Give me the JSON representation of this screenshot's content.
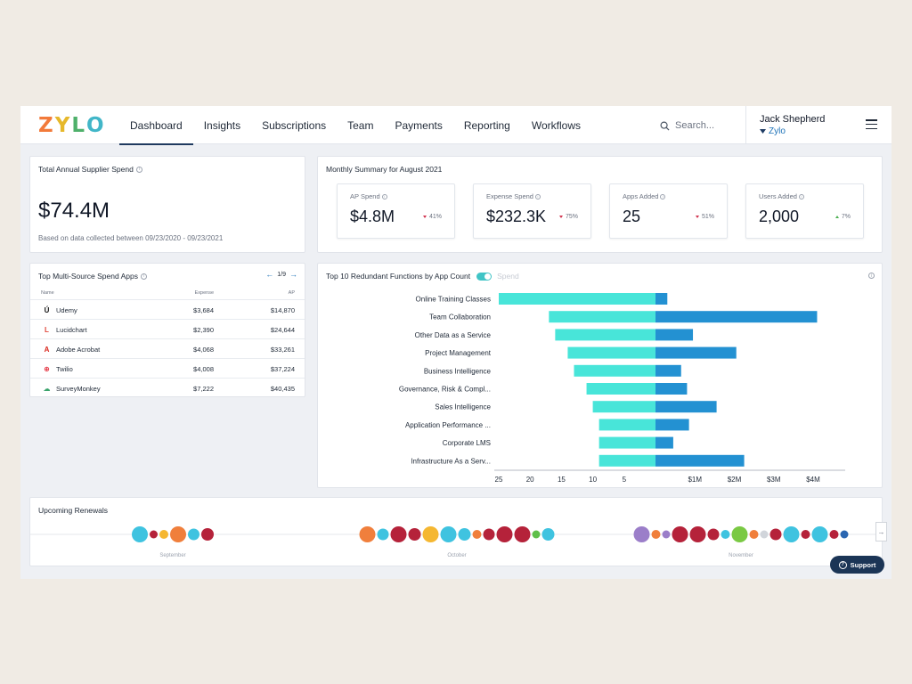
{
  "app": {
    "logo_letters": [
      {
        "char": "Z",
        "color": "#f27a3a"
      },
      {
        "char": "Y",
        "color": "#e6b82b"
      },
      {
        "char": "L",
        "color": "#4fb06b"
      },
      {
        "char": "O",
        "color": "#41b6c8"
      }
    ]
  },
  "nav": {
    "tabs": [
      {
        "label": "Dashboard",
        "active": true
      },
      {
        "label": "Insights"
      },
      {
        "label": "Subscriptions"
      },
      {
        "label": "Team"
      },
      {
        "label": "Payments"
      },
      {
        "label": "Reporting"
      },
      {
        "label": "Workflows"
      }
    ],
    "search_placeholder": "Search...",
    "user_name": "Jack Shepherd",
    "user_org": "Zylo"
  },
  "spend_card": {
    "title": "Total Annual Supplier Spend",
    "value": "$74.4M",
    "note": "Based on data collected between 09/23/2020 - 09/23/2021"
  },
  "monthly": {
    "title": "Monthly Summary for August 2021",
    "metrics": [
      {
        "label": "AP Spend",
        "value": "$4.8M",
        "change": "41%",
        "direction": "down"
      },
      {
        "label": "Expense Spend",
        "value": "$232.3K",
        "change": "75%",
        "direction": "down"
      },
      {
        "label": "Apps Added",
        "value": "25",
        "change": "51%",
        "direction": "down"
      },
      {
        "label": "Users Added",
        "value": "2,000",
        "change": "7%",
        "direction": "up"
      }
    ]
  },
  "apps_table": {
    "title": "Top Multi-Source Spend Apps",
    "pager": "1/9",
    "columns": {
      "name": "Name",
      "expense": "Expense",
      "ap": "AP"
    },
    "rows": [
      {
        "name": "Udemy",
        "expense": "$3,684",
        "ap": "$14,870",
        "icon": "udemy-icon",
        "glyph": "Ú",
        "color": "#111111"
      },
      {
        "name": "Lucidchart",
        "expense": "$2,390",
        "ap": "$24,644",
        "icon": "lucidchart-icon",
        "glyph": "L",
        "color": "#e0463a"
      },
      {
        "name": "Adobe Acrobat",
        "expense": "$4,068",
        "ap": "$33,261",
        "icon": "adobe-acrobat-icon",
        "glyph": "A",
        "color": "#d9261c"
      },
      {
        "name": "Twilio",
        "expense": "$4,008",
        "ap": "$37,224",
        "icon": "twilio-icon",
        "glyph": "⊕",
        "color": "#e22433"
      },
      {
        "name": "SurveyMonkey",
        "expense": "$7,222",
        "ap": "$40,435",
        "icon": "surveymonkey-icon",
        "glyph": "☁",
        "color": "#3aa36b"
      }
    ]
  },
  "redundant": {
    "title": "Top 10 Redundant Functions by App Count",
    "toggle_label": "Spend"
  },
  "chart_data": {
    "type": "bar",
    "title": "Top 10 Redundant Functions by App Count",
    "orientation": "horizontal-diverging",
    "categories": [
      "Online Training Classes",
      "Team Collaboration",
      "Other Data as a Service",
      "Project Management",
      "Business Intelligence",
      "Governance, Risk & Compl...",
      "Sales Intelligence",
      "Application Performance ...",
      "Corporate LMS",
      "Infrastructure As a Serv..."
    ],
    "series": [
      {
        "name": "App Count",
        "color": "#48e5d9",
        "values": [
          25,
          17,
          16,
          14,
          13,
          11,
          10,
          9,
          9,
          9
        ]
      },
      {
        "name": "Spend ($M)",
        "color": "#2391d2",
        "values": [
          0.3,
          4.1,
          0.95,
          2.05,
          0.65,
          0.8,
          1.55,
          0.85,
          0.45,
          2.25
        ]
      }
    ],
    "left_axis": {
      "ticks": [
        25,
        20,
        15,
        10,
        5
      ],
      "range": [
        0,
        25
      ]
    },
    "right_axis": {
      "ticks": [
        "$1M",
        "$2M",
        "$3M",
        "$4M"
      ],
      "tick_values": [
        1,
        2,
        3,
        4
      ],
      "range": [
        0,
        4.7
      ]
    }
  },
  "renewals": {
    "title": "Upcoming Renewals",
    "months": [
      "September",
      "October",
      "November"
    ],
    "bubbles": [
      {
        "month": 0,
        "size": 9,
        "color": "#3fc3e0"
      },
      {
        "month": 0,
        "size": 4.5,
        "color": "#b5223a"
      },
      {
        "month": 0,
        "size": 5,
        "color": "#f5b731"
      },
      {
        "month": 0,
        "size": 9,
        "color": "#f07f3c"
      },
      {
        "month": 0,
        "size": 6.5,
        "color": "#3fc3e0"
      },
      {
        "month": 0,
        "size": 7,
        "color": "#b5223a"
      },
      {
        "month": 1,
        "size": 9,
        "color": "#f07f3c"
      },
      {
        "month": 1,
        "size": 6.5,
        "color": "#3fc3e0"
      },
      {
        "month": 1,
        "size": 9,
        "color": "#b5223a"
      },
      {
        "month": 1,
        "size": 7,
        "color": "#b5223a"
      },
      {
        "month": 1,
        "size": 9,
        "color": "#f5b731"
      },
      {
        "month": 1,
        "size": 9,
        "color": "#3fc3e0"
      },
      {
        "month": 1,
        "size": 7,
        "color": "#3fc3e0"
      },
      {
        "month": 1,
        "size": 5,
        "color": "#f07f3c"
      },
      {
        "month": 1,
        "size": 6.5,
        "color": "#b5223a"
      },
      {
        "month": 1,
        "size": 9,
        "color": "#b5223a"
      },
      {
        "month": 1,
        "size": 9,
        "color": "#b5223a"
      },
      {
        "month": 1,
        "size": 4.5,
        "color": "#5fbf4a"
      },
      {
        "month": 1,
        "size": 7,
        "color": "#3fc3e0"
      },
      {
        "month": 2,
        "size": 9,
        "color": "#9b7ec9"
      },
      {
        "month": 2,
        "size": 5,
        "color": "#f07f3c"
      },
      {
        "month": 2,
        "size": 4.5,
        "color": "#9b7ec9"
      },
      {
        "month": 2,
        "size": 9,
        "color": "#b5223a"
      },
      {
        "month": 2,
        "size": 9,
        "color": "#b5223a"
      },
      {
        "month": 2,
        "size": 6.5,
        "color": "#b5223a"
      },
      {
        "month": 2,
        "size": 5,
        "color": "#3fc3e0"
      },
      {
        "month": 2,
        "size": 9,
        "color": "#7ac943"
      },
      {
        "month": 2,
        "size": 5,
        "color": "#f07f3c"
      },
      {
        "month": 2,
        "size": 4.5,
        "color": "#d1d5db"
      },
      {
        "month": 2,
        "size": 6.5,
        "color": "#b5223a"
      },
      {
        "month": 2,
        "size": 9,
        "color": "#3fc3e0"
      },
      {
        "month": 2,
        "size": 5,
        "color": "#b5223a"
      },
      {
        "month": 2,
        "size": 9,
        "color": "#3fc3e0"
      },
      {
        "month": 2,
        "size": 5,
        "color": "#b5223a"
      },
      {
        "month": 2,
        "size": 4.5,
        "color": "#2a66b1"
      }
    ]
  },
  "support": {
    "label": "Support"
  }
}
